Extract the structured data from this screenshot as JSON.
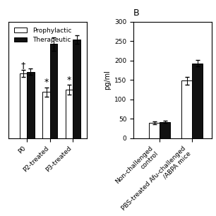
{
  "chart_data": [
    {
      "type": "bar",
      "categories": [
        "P0",
        "P2-treated",
        "P3-treated"
      ],
      "series": [
        {
          "name": "Prophylactic",
          "color": "white",
          "values": [
            145,
            103,
            108
          ],
          "errors": [
            8,
            10,
            11
          ]
        },
        {
          "name": "Therapeutic",
          "color": "#111111",
          "values": [
            148,
            210,
            220
          ],
          "errors": [
            7,
            15,
            10
          ]
        }
      ],
      "ylim": [
        0,
        260
      ],
      "tick_labels": "x",
      "legend": "upper left",
      "annotations": [
        {
          "text": "†",
          "x": "P0",
          "series": "Prophylactic",
          "y": 153
        },
        {
          "text": "*",
          "x": "P2-treated",
          "series": "Prophylactic",
          "y": 114
        },
        {
          "text": "*",
          "x": "P3-treated",
          "series": "Prophylactic",
          "y": 120
        }
      ]
    },
    {
      "type": "bar",
      "title": "B",
      "ylabel": "pg/ml",
      "categories": [
        "Non-challenged\ncontrol",
        "PBS-treated Afu-challenged\n/ABPA mice"
      ],
      "series": [
        {
          "name": "Prophylactic",
          "color": "white",
          "values": [
            40,
            148
          ],
          "errors": [
            4,
            10
          ]
        },
        {
          "name": "Therapeutic",
          "color": "#111111",
          "values": [
            42,
            193
          ],
          "errors": [
            3,
            8
          ]
        }
      ],
      "ylim": [
        0,
        300
      ],
      "yticks": [
        0,
        50,
        100,
        150,
        200,
        250,
        300
      ]
    }
  ]
}
